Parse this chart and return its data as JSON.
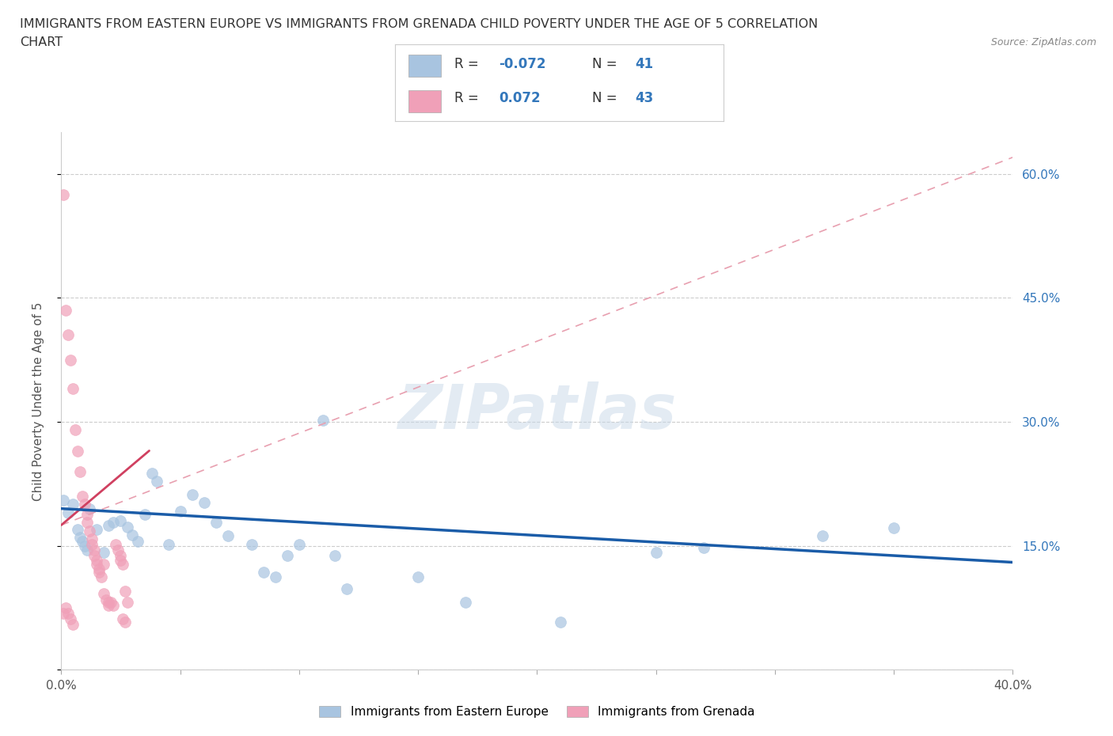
{
  "title_line1": "IMMIGRANTS FROM EASTERN EUROPE VS IMMIGRANTS FROM GRENADA CHILD POVERTY UNDER THE AGE OF 5 CORRELATION",
  "title_line2": "CHART",
  "source": "Source: ZipAtlas.com",
  "ylabel": "Child Poverty Under the Age of 5",
  "x_min": 0.0,
  "x_max": 0.4,
  "y_min": 0.0,
  "y_max": 0.65,
  "yticks": [
    0.0,
    0.15,
    0.3,
    0.45,
    0.6
  ],
  "ytick_labels": [
    "",
    "15.0%",
    "30.0%",
    "45.0%",
    "60.0%"
  ],
  "xticks": [
    0.0,
    0.05,
    0.1,
    0.15,
    0.2,
    0.25,
    0.3,
    0.35,
    0.4
  ],
  "xtick_labels": [
    "0.0%",
    "",
    "",
    "",
    "",
    "",
    "",
    "",
    "40.0%"
  ],
  "legend_blue_label": "Immigrants from Eastern Europe",
  "legend_pink_label": "Immigrants from Grenada",
  "R_blue": -0.072,
  "N_blue": 41,
  "R_pink": 0.072,
  "N_pink": 43,
  "watermark": "ZIPatlas",
  "blue_color": "#a8c4e0",
  "pink_color": "#f0a0b8",
  "blue_line_color": "#1a5ca8",
  "pink_line_color": "#d04060",
  "pink_dash_color": "#e8a0b0",
  "background_color": "#ffffff",
  "blue_scatter": [
    [
      0.001,
      0.205
    ],
    [
      0.003,
      0.19
    ],
    [
      0.005,
      0.2
    ],
    [
      0.007,
      0.17
    ],
    [
      0.008,
      0.16
    ],
    [
      0.009,
      0.155
    ],
    [
      0.01,
      0.15
    ],
    [
      0.011,
      0.145
    ],
    [
      0.012,
      0.195
    ],
    [
      0.015,
      0.17
    ],
    [
      0.018,
      0.142
    ],
    [
      0.02,
      0.175
    ],
    [
      0.022,
      0.178
    ],
    [
      0.025,
      0.18
    ],
    [
      0.028,
      0.173
    ],
    [
      0.03,
      0.163
    ],
    [
      0.032,
      0.155
    ],
    [
      0.035,
      0.188
    ],
    [
      0.038,
      0.238
    ],
    [
      0.04,
      0.228
    ],
    [
      0.045,
      0.152
    ],
    [
      0.05,
      0.192
    ],
    [
      0.055,
      0.212
    ],
    [
      0.06,
      0.202
    ],
    [
      0.065,
      0.178
    ],
    [
      0.07,
      0.162
    ],
    [
      0.08,
      0.152
    ],
    [
      0.085,
      0.118
    ],
    [
      0.09,
      0.112
    ],
    [
      0.095,
      0.138
    ],
    [
      0.1,
      0.152
    ],
    [
      0.11,
      0.302
    ],
    [
      0.115,
      0.138
    ],
    [
      0.12,
      0.098
    ],
    [
      0.15,
      0.112
    ],
    [
      0.17,
      0.082
    ],
    [
      0.21,
      0.058
    ],
    [
      0.25,
      0.142
    ],
    [
      0.27,
      0.148
    ],
    [
      0.32,
      0.162
    ],
    [
      0.35,
      0.172
    ]
  ],
  "pink_scatter": [
    [
      0.001,
      0.575
    ],
    [
      0.002,
      0.435
    ],
    [
      0.003,
      0.405
    ],
    [
      0.004,
      0.375
    ],
    [
      0.005,
      0.34
    ],
    [
      0.006,
      0.29
    ],
    [
      0.007,
      0.265
    ],
    [
      0.008,
      0.24
    ],
    [
      0.009,
      0.21
    ],
    [
      0.01,
      0.2
    ],
    [
      0.011,
      0.188
    ],
    [
      0.011,
      0.178
    ],
    [
      0.012,
      0.168
    ],
    [
      0.013,
      0.158
    ],
    [
      0.013,
      0.152
    ],
    [
      0.014,
      0.145
    ],
    [
      0.014,
      0.138
    ],
    [
      0.015,
      0.132
    ],
    [
      0.015,
      0.128
    ],
    [
      0.016,
      0.122
    ],
    [
      0.016,
      0.118
    ],
    [
      0.017,
      0.112
    ],
    [
      0.018,
      0.128
    ],
    [
      0.018,
      0.092
    ],
    [
      0.019,
      0.085
    ],
    [
      0.02,
      0.082
    ],
    [
      0.02,
      0.078
    ],
    [
      0.021,
      0.082
    ],
    [
      0.022,
      0.078
    ],
    [
      0.023,
      0.152
    ],
    [
      0.024,
      0.145
    ],
    [
      0.025,
      0.138
    ],
    [
      0.025,
      0.132
    ],
    [
      0.026,
      0.128
    ],
    [
      0.026,
      0.062
    ],
    [
      0.027,
      0.058
    ],
    [
      0.027,
      0.095
    ],
    [
      0.028,
      0.082
    ],
    [
      0.003,
      0.068
    ],
    [
      0.004,
      0.062
    ],
    [
      0.005,
      0.055
    ],
    [
      0.002,
      0.075
    ],
    [
      0.001,
      0.068
    ]
  ],
  "pink_trend_x": [
    0.0,
    0.037
  ],
  "pink_trend_y": [
    0.175,
    0.265
  ],
  "blue_trend_x": [
    0.0,
    0.4
  ],
  "blue_trend_y": [
    0.195,
    0.13
  ]
}
